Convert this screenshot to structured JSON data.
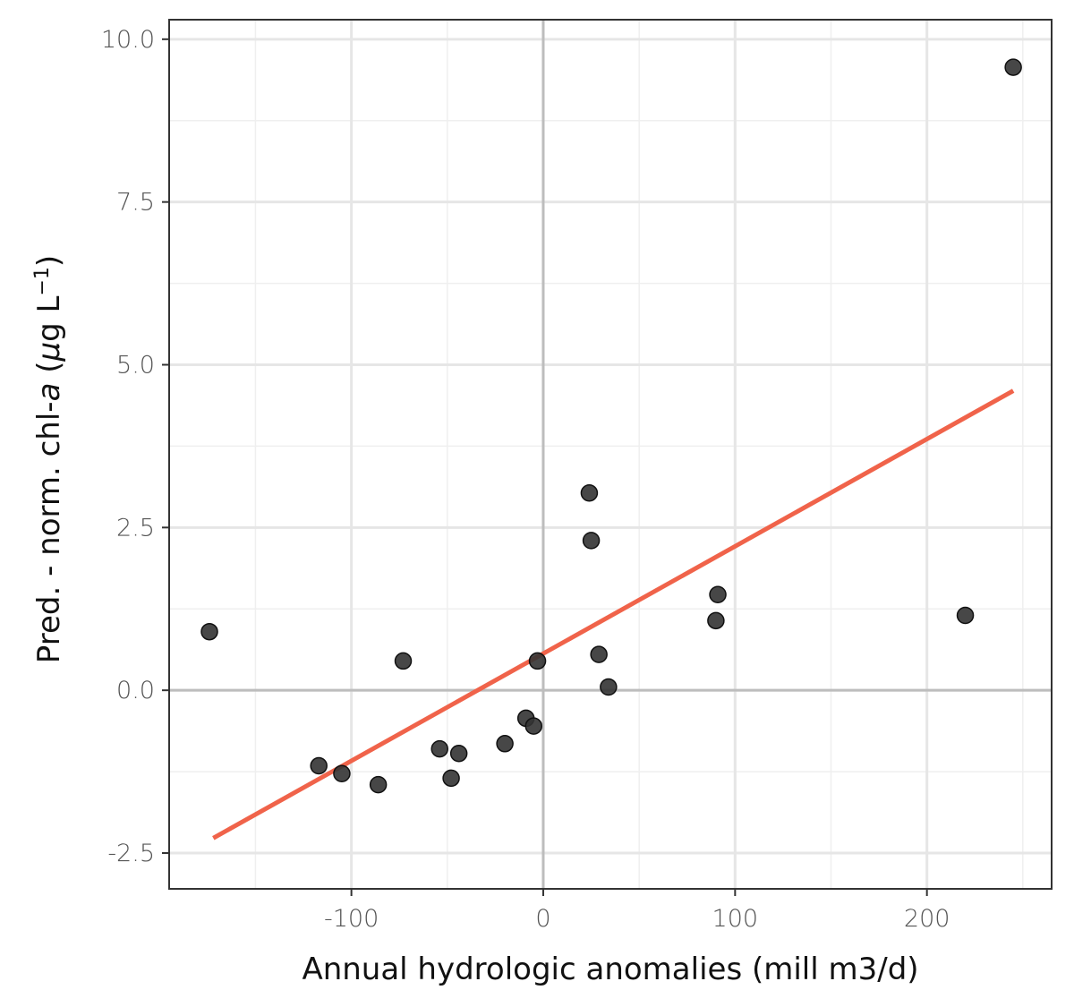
{
  "chart_data": {
    "type": "scatter",
    "title": "",
    "xlabel": "Annual hydrologic anomalies (mill m3/d)",
    "ylabel": {
      "prefix": "Pred. - norm. chl-",
      "italic": "a",
      "open": " (",
      "mu": "μ",
      "unit": "g L",
      "sup": "−1",
      "close": ")"
    },
    "xlim": [
      -195,
      265
    ],
    "ylim": [
      -3.05,
      10.3
    ],
    "x_ticks": [
      -100,
      0,
      100,
      200
    ],
    "x_tick_labels": [
      "-100",
      "0",
      "100",
      "200"
    ],
    "x_minor_ticks": [
      -150,
      -50,
      50,
      150,
      250
    ],
    "y_ticks": [
      -2.5,
      0,
      2.5,
      5,
      7.5,
      10
    ],
    "y_tick_labels": [
      "-2.5",
      "0.0",
      "2.5",
      "5.0",
      "7.5",
      "10.0"
    ],
    "y_minor_ticks": [
      -1.25,
      1.25,
      3.75,
      6.25,
      8.75
    ],
    "grid": true,
    "reference_lines": {
      "x": 0,
      "y": 0
    },
    "series": [
      {
        "type": "scatter",
        "color": "#333333",
        "points": [
          {
            "x": -174,
            "y": 0.9
          },
          {
            "x": -117,
            "y": -1.16
          },
          {
            "x": -105,
            "y": -1.28
          },
          {
            "x": -86,
            "y": -1.45
          },
          {
            "x": -73,
            "y": 0.45
          },
          {
            "x": -54,
            "y": -0.9
          },
          {
            "x": -48,
            "y": -1.35
          },
          {
            "x": -44,
            "y": -0.97
          },
          {
            "x": -20,
            "y": -0.82
          },
          {
            "x": -9,
            "y": -0.43
          },
          {
            "x": -5,
            "y": -0.55
          },
          {
            "x": -3,
            "y": 0.45
          },
          {
            "x": 24,
            "y": 3.03
          },
          {
            "x": 25,
            "y": 2.3
          },
          {
            "x": 29,
            "y": 0.55
          },
          {
            "x": 34,
            "y": 0.05
          },
          {
            "x": 90,
            "y": 1.07
          },
          {
            "x": 91,
            "y": 1.47
          },
          {
            "x": 220,
            "y": 1.15
          },
          {
            "x": 245,
            "y": 9.57
          }
        ]
      },
      {
        "type": "line",
        "color": "#f0634a",
        "points": [
          {
            "x": -172,
            "y": -2.27
          },
          {
            "x": 245,
            "y": 4.6
          }
        ]
      }
    ]
  }
}
